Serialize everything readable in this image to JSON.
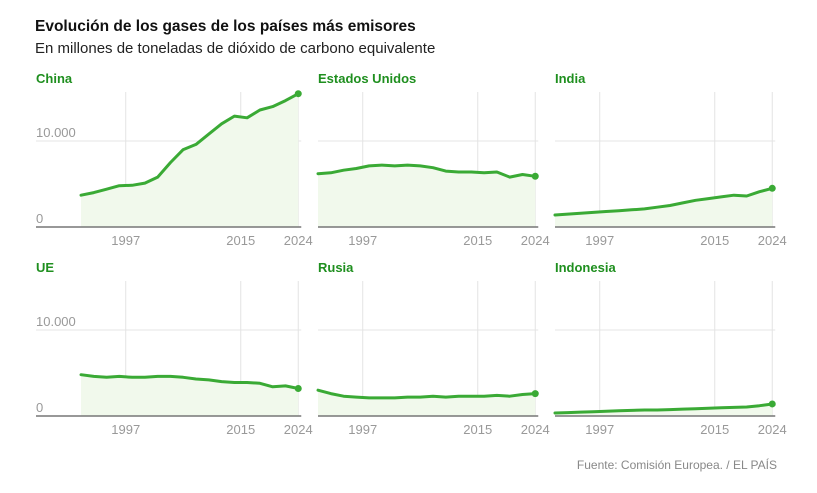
{
  "header": {
    "title": "Evolución de los gases de los países más emisores",
    "subtitle": "En millones de toneladas de dióxido de carbono equivalente"
  },
  "footer": {
    "source": "Fuente: Comisión Europea. / EL PAÍS"
  },
  "colors": {
    "line": "#3aaa35",
    "fill": "#f1f9ec",
    "title": "#1f8f1f",
    "grid": "#e4e4e4",
    "baseline": "#777777"
  },
  "chart_data": {
    "type": "line",
    "layout": "small-multiples 3x2",
    "x": [
      1990,
      1992,
      1994,
      1996,
      1998,
      2000,
      2002,
      2004,
      2006,
      2008,
      2010,
      2012,
      2014,
      2016,
      2018,
      2020,
      2022,
      2024
    ],
    "xticks": [
      "1997",
      "2015",
      "2024"
    ],
    "yticks": [
      "0",
      "10.000"
    ],
    "ylim": [
      0,
      15700
    ],
    "xlim": [
      1990,
      2024
    ],
    "series": [
      {
        "name": "China",
        "values": [
          3700,
          4000,
          4400,
          4800,
          4850,
          5100,
          5800,
          7500,
          9000,
          9600,
          10800,
          12000,
          12900,
          12700,
          13600,
          14000,
          14700,
          15500
        ]
      },
      {
        "name": "Estados Unidos",
        "values": [
          6200,
          6300,
          6600,
          6800,
          7100,
          7200,
          7100,
          7200,
          7100,
          6900,
          6500,
          6400,
          6400,
          6300,
          6400,
          5800,
          6100,
          5900
        ]
      },
      {
        "name": "India",
        "values": [
          1400,
          1500,
          1600,
          1700,
          1800,
          1900,
          2000,
          2100,
          2300,
          2500,
          2800,
          3100,
          3300,
          3500,
          3700,
          3600,
          4100,
          4500
        ]
      },
      {
        "name": "UE",
        "values": [
          4800,
          4600,
          4500,
          4600,
          4500,
          4500,
          4600,
          4600,
          4500,
          4300,
          4200,
          4000,
          3900,
          3900,
          3800,
          3400,
          3500,
          3200
        ]
      },
      {
        "name": "Rusia",
        "values": [
          3000,
          2600,
          2300,
          2200,
          2100,
          2100,
          2100,
          2200,
          2200,
          2300,
          2200,
          2300,
          2300,
          2300,
          2400,
          2300,
          2500,
          2600
        ]
      },
      {
        "name": "Indonesia",
        "values": [
          350,
          400,
          450,
          500,
          550,
          600,
          650,
          700,
          700,
          750,
          800,
          850,
          900,
          950,
          1000,
          1050,
          1200,
          1400
        ]
      }
    ]
  }
}
